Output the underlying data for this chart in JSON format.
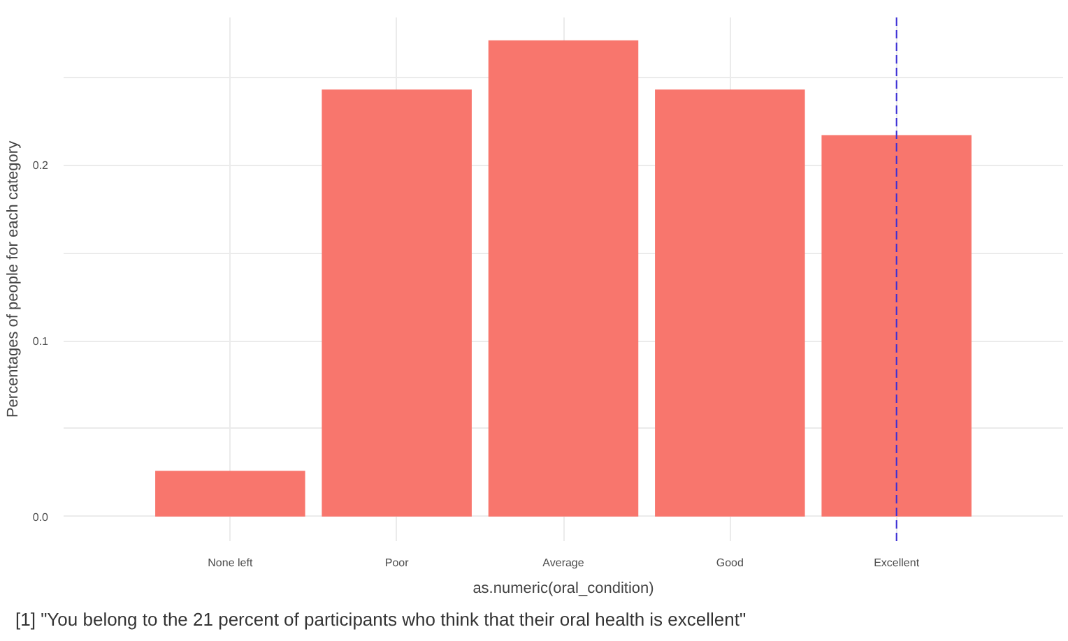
{
  "chart_data": {
    "type": "bar",
    "categories": [
      "None left",
      "Poor",
      "Average",
      "Good",
      "Excellent"
    ],
    "values": [
      0.026,
      0.243,
      0.271,
      0.243,
      0.217
    ],
    "color": "#f8766d",
    "xlabel": "as.numeric(oral_condition)",
    "ylabel": "Percentages of people for each category",
    "ylim": [
      -0.014,
      0.284
    ],
    "yticks": [
      {
        "value": 0.0,
        "label": "0.0"
      },
      {
        "value": 0.05,
        "label": null
      },
      0.1,
      {
        "value": 0.15,
        "label": null
      },
      0.2,
      {
        "value": 0.25,
        "label": null
      }
    ],
    "grid": true,
    "ref_lines": [
      {
        "axis": "x",
        "value": "Excellent",
        "color": "#3b2fd6",
        "line_style": "dashed"
      }
    ],
    "annotations": [
      "[1] \"You belong to the 21 percent of participants who think that their oral health is excellent\""
    ]
  }
}
